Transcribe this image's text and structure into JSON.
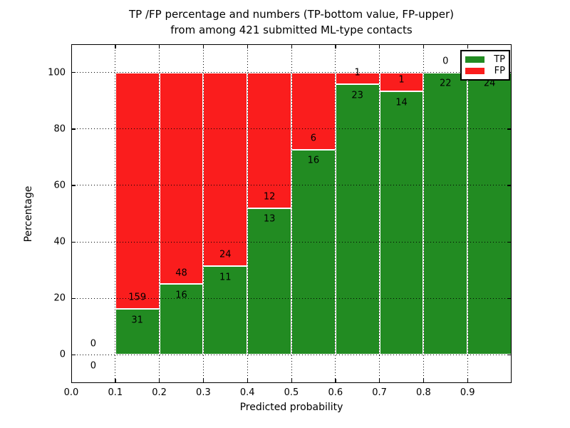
{
  "title": {
    "line1": "TP /FP percentage and numbers (TP-bottom value, FP-upper)",
    "line2": "from among 421 submitted ML-type contacts"
  },
  "axes": {
    "xlabel": "Predicted probability",
    "ylabel": "Percentage"
  },
  "legend": {
    "entries": [
      {
        "label": "TP",
        "color": "#228B22"
      },
      {
        "label": "FP",
        "color": "#FA1D1D"
      }
    ]
  },
  "colors": {
    "tp": "#228B22",
    "fp": "#FA1D1D",
    "background": "#ffffff",
    "text": "#000000"
  },
  "chart_data": {
    "type": "bar",
    "stacked": true,
    "title": "TP /FP percentage and numbers (TP-bottom value, FP-upper) from among 421 submitted ML-type contacts",
    "xlabel": "Predicted probability",
    "ylabel": "Percentage",
    "xlim": [
      0.0,
      1.0
    ],
    "ylim": [
      -10,
      110
    ],
    "xticks": [
      "0.0",
      "0.1",
      "0.2",
      "0.3",
      "0.4",
      "0.5",
      "0.6",
      "0.7",
      "0.8",
      "0.9"
    ],
    "xtick_values": [
      0.0,
      0.1,
      0.2,
      0.3,
      0.4,
      0.5,
      0.6,
      0.7,
      0.8,
      0.9
    ],
    "yticks": [
      0,
      20,
      40,
      60,
      80,
      100
    ],
    "grid": "dotted, both axes, drawn over bars",
    "legend_position": "upper right",
    "bin_width": 0.1,
    "bin_starts": [
      0.0,
      0.1,
      0.2,
      0.3,
      0.4,
      0.5,
      0.6,
      0.7,
      0.8,
      0.9
    ],
    "total_contacts": 421,
    "series": [
      {
        "name": "TP",
        "color": "#228B22",
        "counts": [
          0,
          31,
          16,
          11,
          13,
          16,
          23,
          14,
          22,
          24
        ]
      },
      {
        "name": "FP",
        "color": "#FA1D1D",
        "counts": [
          0,
          159,
          48,
          24,
          12,
          6,
          1,
          1,
          0,
          0
        ]
      }
    ],
    "note": "Bar heights are per-bin percentages: TP/(TP+FP)*100 green on bottom, FP/(TP+FP)*100 red stacked to 100. Count labels annotate each segment; FP label of last bin (0) is hidden behind the legend."
  }
}
